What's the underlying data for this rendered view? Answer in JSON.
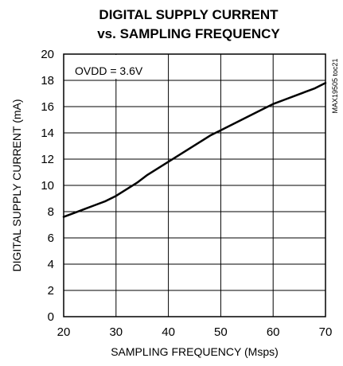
{
  "chart_data": {
    "type": "line",
    "title_lines": [
      "DIGITAL SUPPLY CURRENT",
      "vs. SAMPLING FREQUENCY"
    ],
    "xlabel": "SAMPLING FREQUENCY (Msps)",
    "ylabel": "DIGITAL SUPPLY CURRENT (mA)",
    "xlim": [
      20,
      70
    ],
    "ylim": [
      0,
      20
    ],
    "xticks": [
      20,
      30,
      40,
      50,
      60,
      70
    ],
    "yticks": [
      0,
      2,
      4,
      6,
      8,
      10,
      12,
      14,
      16,
      18,
      20
    ],
    "grid": true,
    "annotation": "OVDD = 3.6V",
    "side_label": "MAX19505 toc21",
    "series": [
      {
        "x": [
          20,
          22,
          24,
          26,
          28,
          30,
          32,
          34,
          36,
          38,
          40,
          42,
          44,
          46,
          48,
          50,
          52,
          54,
          56,
          58,
          60,
          62,
          64,
          66,
          68,
          70
        ],
        "values": [
          7.6,
          7.9,
          8.2,
          8.5,
          8.8,
          9.2,
          9.7,
          10.2,
          10.8,
          11.3,
          11.8,
          12.3,
          12.8,
          13.3,
          13.8,
          14.2,
          14.6,
          15.0,
          15.4,
          15.8,
          16.2,
          16.5,
          16.8,
          17.1,
          17.4,
          17.8
        ],
        "color": "#000000"
      }
    ]
  }
}
